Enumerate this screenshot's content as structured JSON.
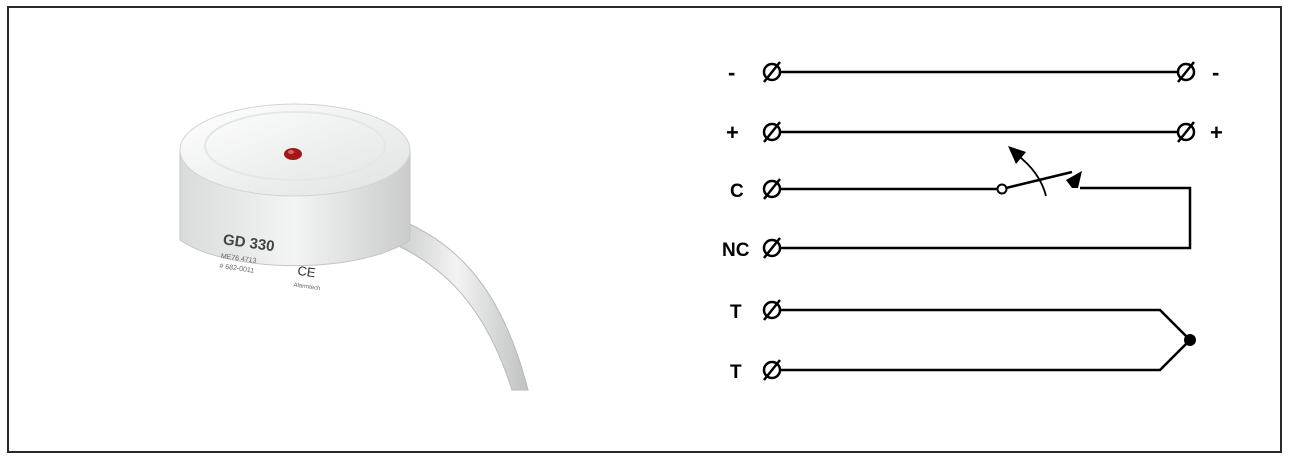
{
  "product": {
    "model": "GD 330",
    "code_line_1": "ME76 4713",
    "code_line_2": "# 682-0011",
    "ce_mark": "CE",
    "brand": "Alarmtech"
  },
  "terminals_left": [
    {
      "label": "-"
    },
    {
      "label": "+"
    },
    {
      "label": "C"
    },
    {
      "label": "NC"
    },
    {
      "label": "T"
    },
    {
      "label": "T"
    }
  ],
  "terminals_right": [
    {
      "label": "-"
    },
    {
      "label": "+"
    }
  ],
  "colors": {
    "line": "#000000",
    "device_body": "#e8ebe9",
    "led": "#a01818",
    "cable": "#d6d8d6"
  }
}
